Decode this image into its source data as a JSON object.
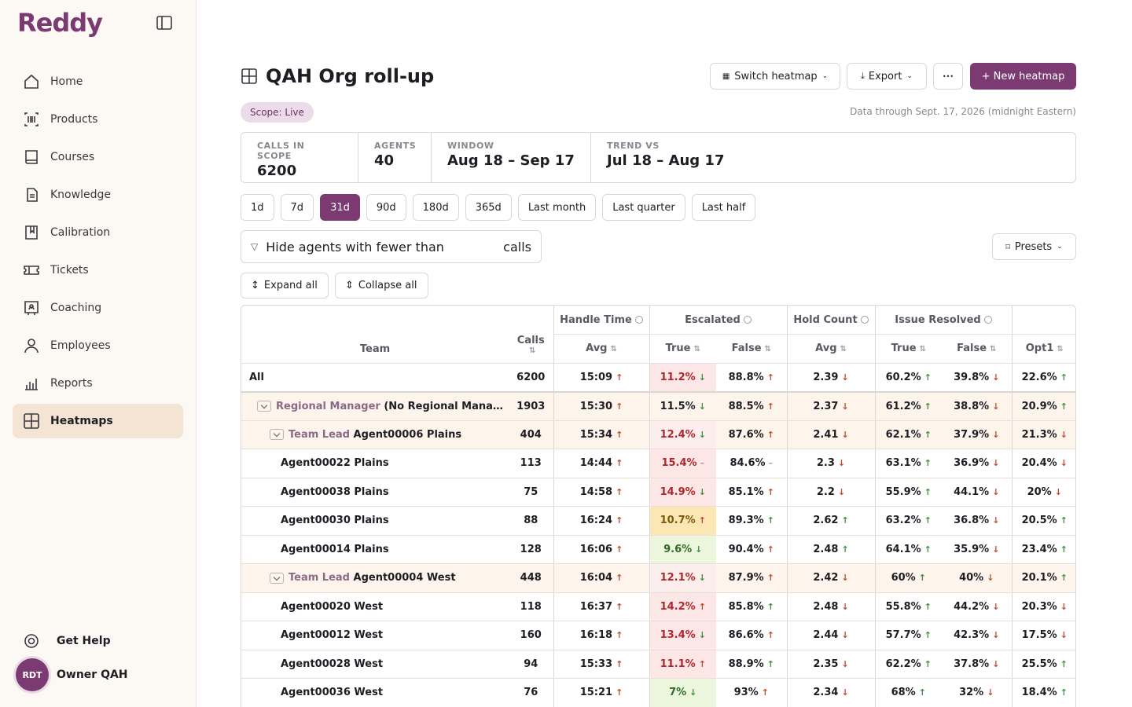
{
  "app": {
    "logo": "Reddy"
  },
  "sidebar": {
    "items": [
      {
        "label": "Home",
        "icon": "home-icon"
      },
      {
        "label": "Products",
        "icon": "barcode-icon"
      },
      {
        "label": "Courses",
        "icon": "book-icon"
      },
      {
        "label": "Knowledge",
        "icon": "document-icon"
      },
      {
        "label": "Calibration",
        "icon": "bookmark-book-icon"
      },
      {
        "label": "Tickets",
        "icon": "ticket-icon"
      },
      {
        "label": "Coaching",
        "icon": "coaching-icon"
      },
      {
        "label": "Employees",
        "icon": "person-icon"
      },
      {
        "label": "Reports",
        "icon": "bar-chart-icon"
      },
      {
        "label": "Heatmaps",
        "icon": "grid-icon",
        "active": true
      }
    ],
    "help_label": "Get Help",
    "user": {
      "initials": "RDT",
      "name": "Owner QAH"
    }
  },
  "header": {
    "title": "QAH Org roll-up",
    "switch_label": "Switch heatmap",
    "export_label": "Export",
    "more_label": "•••",
    "new_label": "+ New heatmap",
    "scope": "Scope: Live",
    "data_through": "Data through Sept. 17, 2026 (midnight Eastern)"
  },
  "stats": [
    {
      "label": "CALLS IN SCOPE",
      "value": "6200"
    },
    {
      "label": "AGENTS",
      "value": "40"
    },
    {
      "label": "WINDOW",
      "value": "Aug 18 – Sep 17"
    },
    {
      "label": "TREND VS",
      "value": "Jul 18 – Aug 17"
    }
  ],
  "ranges": [
    "1d",
    "7d",
    "31d",
    "90d",
    "180d",
    "365d",
    "Last month",
    "Last quarter",
    "Last half"
  ],
  "active_range": "31d",
  "filter": {
    "label": "Hide agents with fewer than",
    "suffix": "calls"
  },
  "presets_label": "Presets",
  "expand_label": "Expand all",
  "collapse_label": "Collapse all",
  "table": {
    "headers": {
      "team": "Team",
      "calls": "Calls",
      "handle_time": "Handle Time",
      "escalated": "Escalated",
      "hold_count": "Hold Count",
      "issue_resolved": "Issue Resolved",
      "avg": "Avg",
      "true": "True",
      "false": "False",
      "opt1": "Opt1"
    },
    "rows": [
      {
        "type": "all",
        "team": "All",
        "calls": "6200",
        "ht": "15:09",
        "ht_t": "up",
        "et": "11.2%",
        "et_t": "good",
        "et_c": "hm-red",
        "ef": "88.8%",
        "ef_t": "up",
        "hc": "2.39",
        "hc_t": "down",
        "it": "60.2%",
        "it_t": "good",
        "if": "39.8%",
        "if_t": "down",
        "o1": "22.6%",
        "o1_t": "good"
      },
      {
        "type": "rm",
        "role": "Regional Manager",
        "team": "(No Regional Mana...",
        "calls": "1903",
        "ht": "15:30",
        "ht_t": "up",
        "et": "11.5%",
        "et_t": "good",
        "et_c": "",
        "ef": "88.5%",
        "ef_t": "up",
        "hc": "2.37",
        "hc_t": "down",
        "it": "61.2%",
        "it_t": "good",
        "if": "38.8%",
        "if_t": "down",
        "o1": "20.9%",
        "o1_t": "good"
      },
      {
        "type": "tl",
        "role": "Team Lead",
        "team": "Agent00006 Plains",
        "calls": "404",
        "ht": "15:34",
        "ht_t": "up",
        "et": "12.4%",
        "et_t": "good",
        "et_c": "hm-redlight",
        "ef": "87.6%",
        "ef_t": "up",
        "hc": "2.41",
        "hc_t": "down",
        "it": "62.1%",
        "it_t": "good",
        "if": "37.9%",
        "if_t": "down",
        "o1": "21.3%",
        "o1_t": "down"
      },
      {
        "type": "agent",
        "team": "Agent00022 Plains",
        "calls": "113",
        "ht": "14:44",
        "ht_t": "up",
        "et": "15.4%",
        "et_t": "flat",
        "et_c": "hm-red",
        "ef": "84.6%",
        "ef_t": "flat",
        "hc": "2.3",
        "hc_t": "down",
        "it": "63.1%",
        "it_t": "good",
        "if": "36.9%",
        "if_t": "down",
        "o1": "20.4%",
        "o1_t": "down"
      },
      {
        "type": "agent",
        "team": "Agent00038 Plains",
        "calls": "75",
        "ht": "14:58",
        "ht_t": "up",
        "et": "14.9%",
        "et_t": "good",
        "et_c": "hm-red",
        "ef": "85.1%",
        "ef_t": "up",
        "hc": "2.2",
        "hc_t": "down",
        "it": "55.9%",
        "it_t": "good",
        "if": "44.1%",
        "if_t": "down",
        "o1": "20%",
        "o1_t": "down"
      },
      {
        "type": "agent",
        "team": "Agent00030 Plains",
        "calls": "88",
        "ht": "16:24",
        "ht_t": "up",
        "et": "10.7%",
        "et_t": "up",
        "et_c": "hm-yellow",
        "ef": "89.3%",
        "ef_t": "good",
        "hc": "2.62",
        "hc_t": "good",
        "it": "63.2%",
        "it_t": "good",
        "if": "36.8%",
        "if_t": "down",
        "o1": "20.5%",
        "o1_t": "good"
      },
      {
        "type": "agent",
        "team": "Agent00014 Plains",
        "calls": "128",
        "ht": "16:06",
        "ht_t": "up",
        "et": "9.6%",
        "et_t": "good",
        "et_c": "hm-green",
        "ef": "90.4%",
        "ef_t": "up",
        "hc": "2.48",
        "hc_t": "good",
        "it": "64.1%",
        "it_t": "good",
        "if": "35.9%",
        "if_t": "down",
        "o1": "23.4%",
        "o1_t": "good"
      },
      {
        "type": "tl",
        "role": "Team Lead",
        "team": "Agent00004 West",
        "calls": "448",
        "ht": "16:04",
        "ht_t": "up",
        "et": "12.1%",
        "et_t": "good",
        "et_c": "hm-redlight",
        "ef": "87.9%",
        "ef_t": "up",
        "hc": "2.42",
        "hc_t": "down",
        "it": "60%",
        "it_t": "good",
        "if": "40%",
        "if_t": "down",
        "o1": "20.1%",
        "o1_t": "good"
      },
      {
        "type": "agent",
        "team": "Agent00020 West",
        "calls": "118",
        "ht": "16:37",
        "ht_t": "up",
        "et": "14.2%",
        "et_t": "up",
        "et_c": "hm-red",
        "ef": "85.8%",
        "ef_t": "good",
        "hc": "2.48",
        "hc_t": "down",
        "it": "55.8%",
        "it_t": "good",
        "if": "44.2%",
        "if_t": "down",
        "o1": "20.3%",
        "o1_t": "down"
      },
      {
        "type": "agent",
        "team": "Agent00012 West",
        "calls": "160",
        "ht": "16:18",
        "ht_t": "up",
        "et": "13.4%",
        "et_t": "good",
        "et_c": "hm-red",
        "ef": "86.6%",
        "ef_t": "up",
        "hc": "2.44",
        "hc_t": "down",
        "it": "57.7%",
        "it_t": "good",
        "if": "42.3%",
        "if_t": "down",
        "o1": "17.5%",
        "o1_t": "down"
      },
      {
        "type": "agent",
        "team": "Agent00028 West",
        "calls": "94",
        "ht": "15:33",
        "ht_t": "up",
        "et": "11.1%",
        "et_t": "up",
        "et_c": "hm-red",
        "ef": "88.9%",
        "ef_t": "good",
        "hc": "2.35",
        "hc_t": "down",
        "it": "62.2%",
        "it_t": "good",
        "if": "37.8%",
        "if_t": "down",
        "o1": "25.5%",
        "o1_t": "good"
      },
      {
        "type": "agent",
        "team": "Agent00036 West",
        "calls": "76",
        "ht": "15:21",
        "ht_t": "up",
        "et": "7%",
        "et_t": "good",
        "et_c": "hm-green",
        "ef": "93%",
        "ef_t": "up",
        "hc": "2.34",
        "hc_t": "down",
        "it": "68%",
        "it_t": "good",
        "if": "32%",
        "if_t": "down",
        "o1": "18.4%",
        "o1_t": "good"
      }
    ]
  },
  "colors": {
    "brand": "#7b3a72",
    "sidebar_bg": "#fcf8f3",
    "active_nav": "#f3e4d3"
  }
}
